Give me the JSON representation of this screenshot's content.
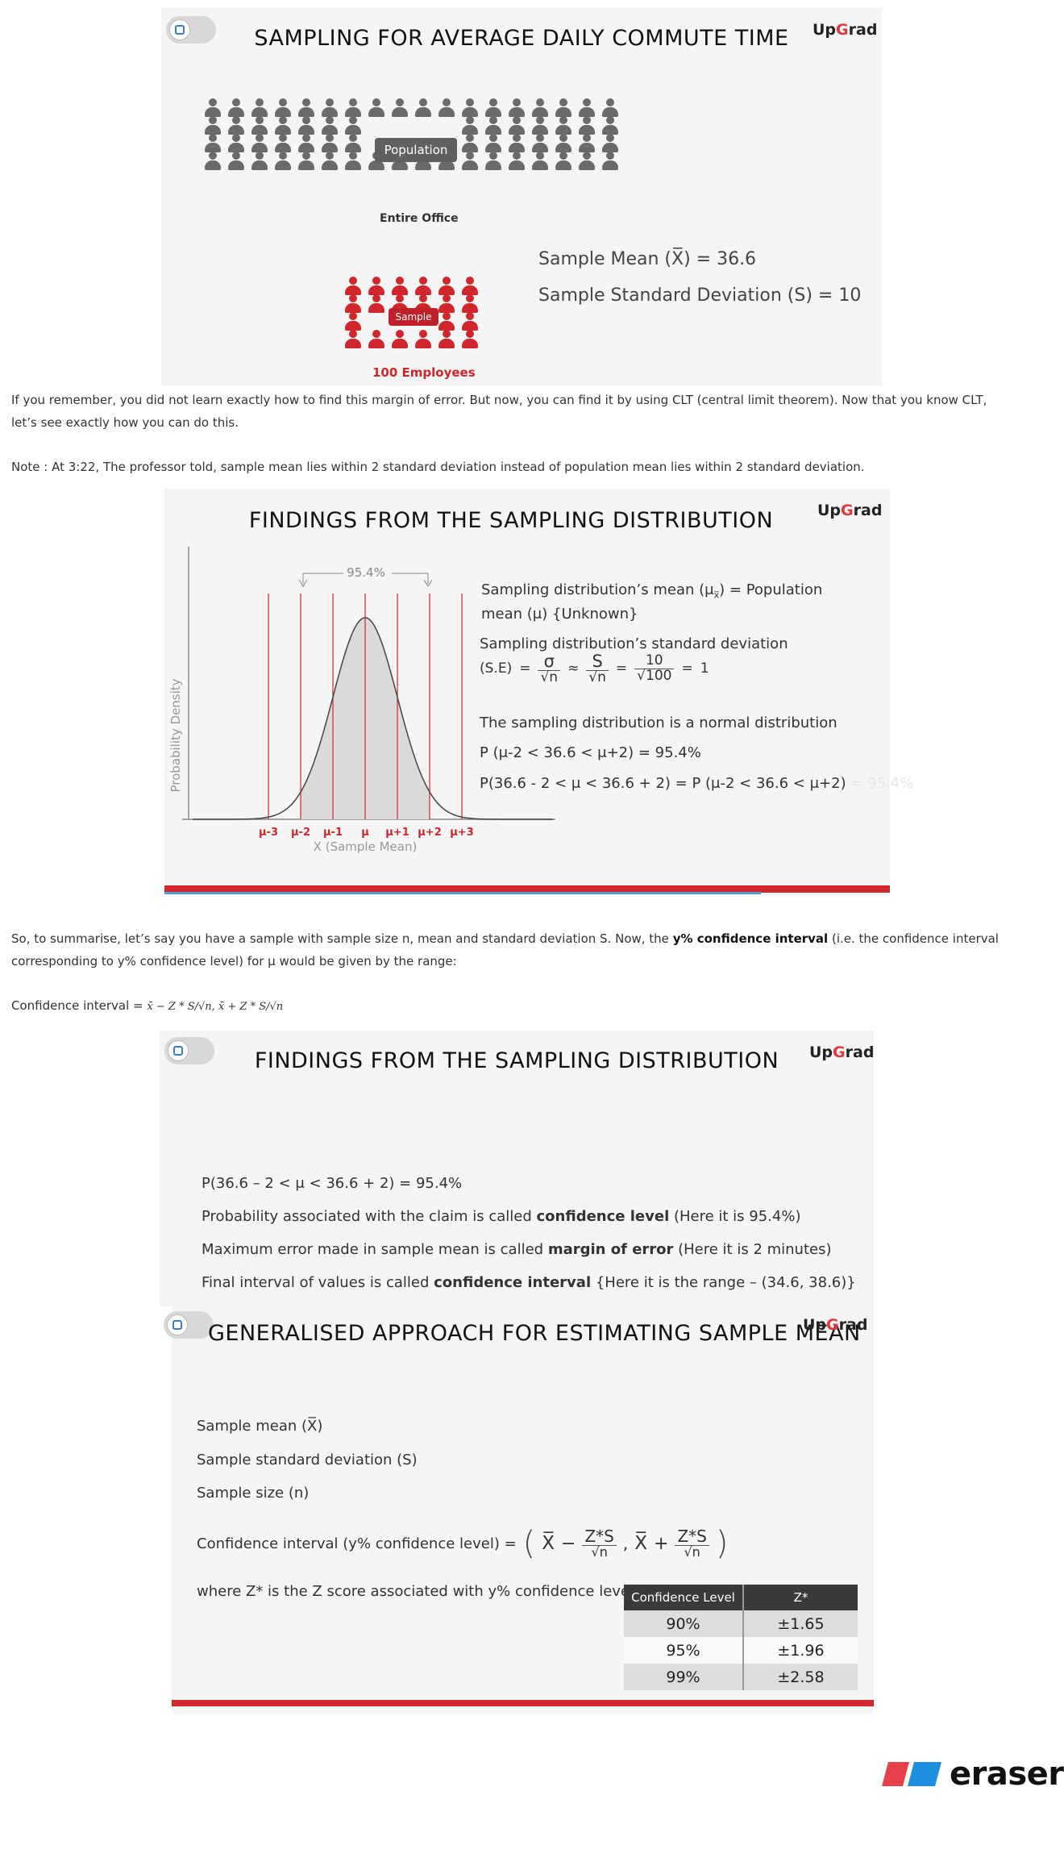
{
  "colors": {
    "accent_red": "#d0262c",
    "slide_bg": "#f5f5f5",
    "person_gray": "#6a6a6a",
    "person_red": "#d0262c"
  },
  "logo": {
    "up": "Up",
    "g": "G",
    "rad": "rad"
  },
  "slide1": {
    "title": "SAMPLING FOR AVERAGE DAILY COMMUTE TIME",
    "population_label": "Population",
    "entire_office_label": "Entire Office",
    "sample_label": "Sample",
    "employees_label": "100 Employees",
    "sample_mean": "Sample Mean (X̅) = 36.6",
    "sample_sd": "Sample Standard Deviation (S) = 10"
  },
  "para1": "If you remember, you did not learn exactly how to find this margin of error. But now, you can find it by using CLT (central limit theorem). Now that you know CLT,",
  "para1b": "let’s see exactly how you can do this.",
  "note": "Note : At 3:22, The professor told, sample mean lies within 2 standard deviation instead of population mean lies within 2 standard deviation.",
  "slide2": {
    "title": "FINDINGS FROM THE SAMPLING DISTRIBUTION",
    "ylabel": "Probability Density",
    "xlabel": "X (Sample Mean)",
    "percent_label": "95.4%",
    "ticks": [
      "μ-3",
      "μ-2",
      "μ-1",
      "μ",
      "μ+1",
      "μ+2",
      "μ+3"
    ],
    "line1a": "Sampling distribution’s mean (μ",
    "line1sub": "x̅",
    "line1b": ") = Population",
    "line1c": "mean (μ) {Unknown}",
    "line2": "Sampling distribution’s standard deviation",
    "se_label": "(S.E)",
    "se_eq1": "=",
    "se_sigma": "σ",
    "se_root_n": "√n",
    "se_approx": "≈",
    "se_s": "S",
    "se_ten": "10",
    "se_root_100": "√100",
    "se_eq3": "=",
    "se_result": "1",
    "line3": "The sampling distribution is a normal distribution",
    "line4": "P (μ-2 < 36.6 < μ+2) = 95.4%",
    "line5": "P(36.6 - 2 < μ < 36.6 + 2) = P (μ-2 < 36.6 < μ+2)",
    "line5_faded": "= 95.4%"
  },
  "para2a_pre": "So, to summarise, let’s say you have a sample with sample size n, mean and standard deviation S. Now, the ",
  "para2a_bold": "y% confidence interval",
  "para2a_post": " (i.e. the confidence interval",
  "para2b": "corresponding to y% confidence level) for μ would be given by the range:",
  "ci_label": "Confidence interval =",
  "ci_formula": "x̄ − Z * S/√n,  x̄ + Z * S/√n",
  "slide3": {
    "title": "FINDINGS FROM THE SAMPLING DISTRIBUTION",
    "l1": "P(36.6 – 2 < μ < 36.6 + 2) = 95.4%",
    "l2a": "Probability associated with the claim is called ",
    "l2b": "confidence level",
    "l2c": " (Here it is 95.4%)",
    "l3a": "Maximum error made in sample mean is called ",
    "l3b": "margin of error",
    "l3c": " (Here it is 2 minutes)",
    "l4a": "Final interval of values is called ",
    "l4b": "confidence interval",
    "l4c": " {Here it is the range – (34.6, 38.6)}"
  },
  "slide4": {
    "title": "GENERALISED APPROACH FOR ESTIMATING SAMPLE MEAN",
    "l1": "Sample mean (X̅)",
    "l2": "Sample standard deviation (S)",
    "l3": "Sample size (n)",
    "l4": "Confidence interval (y% confidence level) =",
    "f_xbar1": "X̅",
    "f_minus": "−",
    "f_zs1": "Z*S",
    "f_rn1": "√n",
    "f_comma": ",",
    "f_xbar2": "X̅",
    "f_plus": "+",
    "f_zs2": "Z*S",
    "f_rn2": "√n",
    "l5": "where Z* is the Z score associated with y% confidence level",
    "table": {
      "headers": [
        "Confidence Level",
        "Z*"
      ],
      "rows": [
        [
          "90%",
          "±1.65"
        ],
        [
          "95%",
          "±1.96"
        ],
        [
          "99%",
          "±2.58"
        ]
      ]
    }
  },
  "watermark": "eraser"
}
